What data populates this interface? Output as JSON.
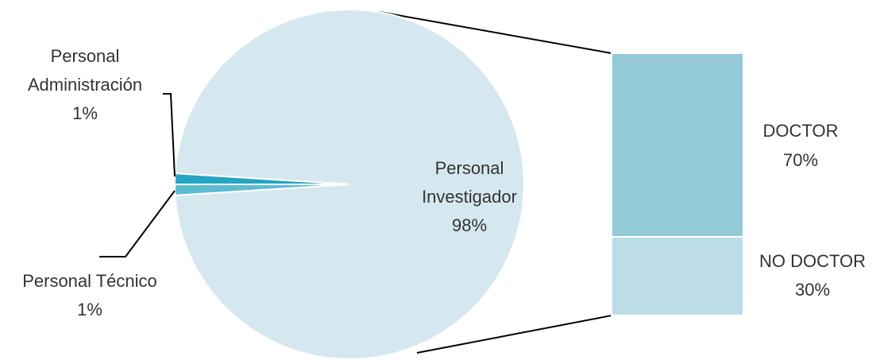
{
  "chart_data": {
    "type": "bar-of-pie",
    "pie": {
      "slices": [
        {
          "label_line1": "Personal",
          "label_line2": "Investigador",
          "percent": "98%",
          "value": 98,
          "color": "#d6e8ef"
        },
        {
          "label_line1": "Personal",
          "label_line2": "Administración",
          "percent": "1%",
          "value": 1,
          "color": "#5cbcd2"
        },
        {
          "label_line1": "Personal Técnico",
          "percent": "1%",
          "value": 1,
          "color": "#24a5c2"
        }
      ]
    },
    "breakdown": {
      "of": "Personal Investigador",
      "segments": [
        {
          "label": "DOCTOR",
          "percent": "70%",
          "value": 70,
          "color": "#94c9d8"
        },
        {
          "label": "NO DOCTOR",
          "percent": "30%",
          "value": 30,
          "color": "#bcdde8"
        }
      ]
    }
  }
}
